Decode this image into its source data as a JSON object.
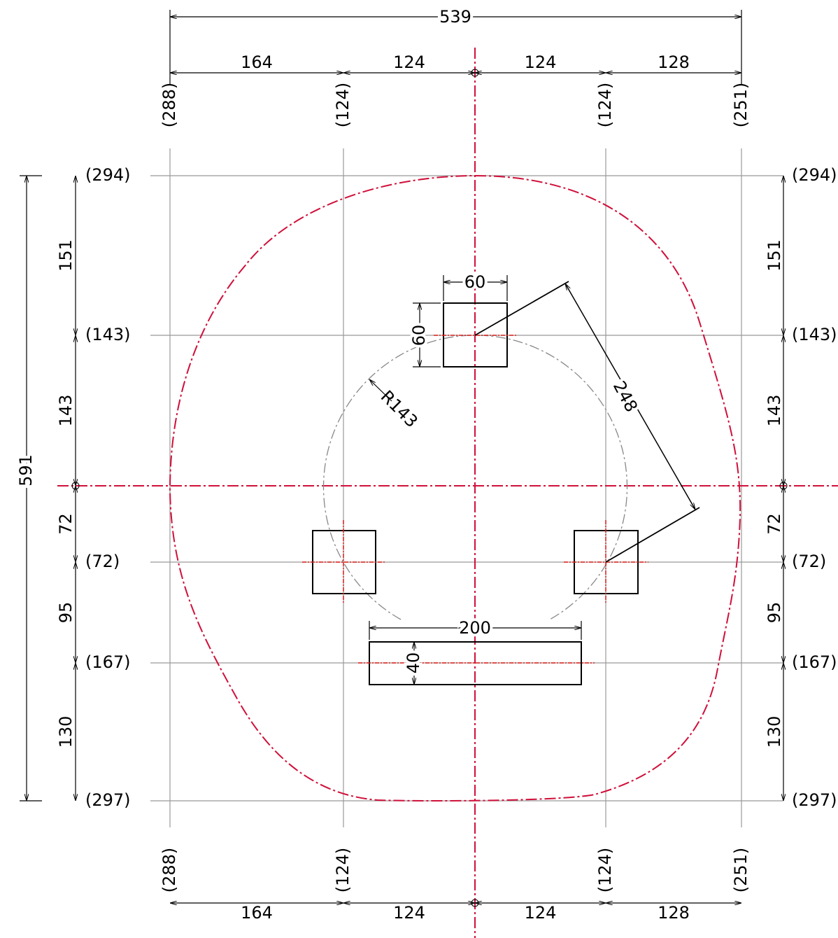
{
  "top": {
    "overall": 539,
    "segments": [
      164,
      124,
      124,
      128
    ],
    "coords": [
      "(288)",
      "(124)",
      "(124)",
      "(251)"
    ]
  },
  "bottom": {
    "segments": [
      164,
      124,
      124,
      128
    ],
    "coords": [
      "(288)",
      "(124)",
      "(124)",
      "(251)"
    ]
  },
  "left": {
    "overall": 591,
    "segments": [
      151,
      143,
      72,
      95,
      130
    ],
    "coords": [
      "(294)",
      "(143)",
      "(72)",
      "(167)",
      "(297)"
    ]
  },
  "right": {
    "segments": [
      151,
      143,
      72,
      95,
      130
    ],
    "coords": [
      "(294)",
      "(143)",
      "(72)",
      "(167)",
      "(297)"
    ]
  },
  "features": {
    "square_width": 60,
    "square_height": 60,
    "radius": "R143",
    "distance": 248,
    "slot_width": 200,
    "slot_height": 40
  }
}
